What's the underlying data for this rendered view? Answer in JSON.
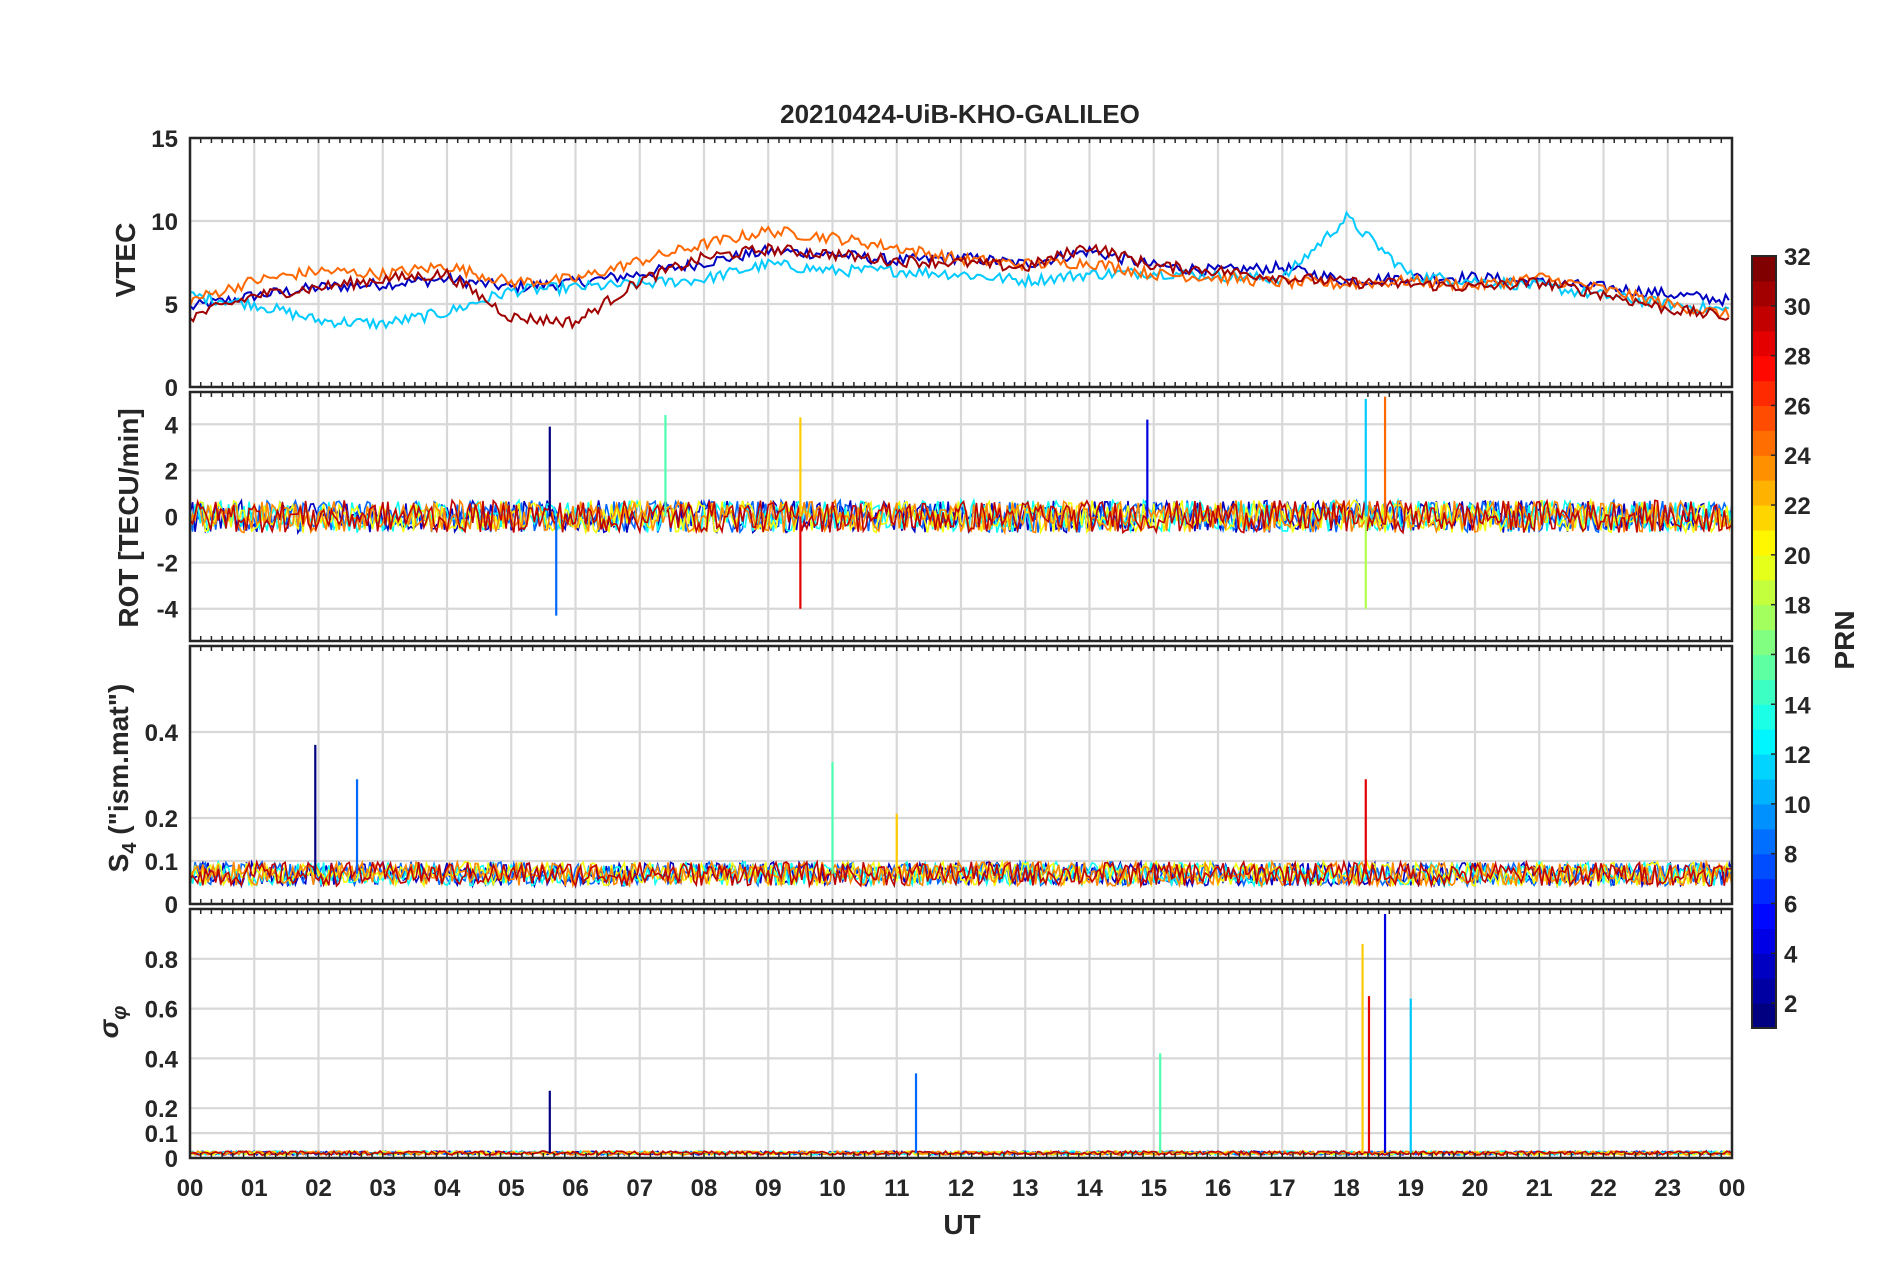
{
  "title": "20210424-UiB-KHO-GALILEO",
  "xlabel": "UT",
  "x_tick_labels": [
    "00",
    "01",
    "02",
    "03",
    "04",
    "05",
    "06",
    "07",
    "08",
    "09",
    "10",
    "11",
    "12",
    "13",
    "14",
    "15",
    "16",
    "17",
    "18",
    "19",
    "20",
    "21",
    "22",
    "23",
    "00"
  ],
  "colorbar": {
    "label": "PRN",
    "range": [
      1,
      32
    ],
    "tick_labels": [
      "2",
      "4",
      "6",
      "8",
      "10",
      "12",
      "14",
      "16",
      "18",
      "20",
      "22",
      "24",
      "26",
      "28",
      "30",
      "32"
    ],
    "colormap": "jet"
  },
  "panels": [
    {
      "id": "vtec",
      "ylabel": "VTEC",
      "ylim": [
        0,
        15
      ],
      "y_ticks": [
        "0",
        "5",
        "10",
        "15"
      ]
    },
    {
      "id": "rot",
      "ylabel": "ROT [TECU/min]",
      "ylim": [
        -5.4,
        5.4
      ],
      "y_ticks": [
        "-4",
        "-2",
        "0",
        "2",
        "4"
      ]
    },
    {
      "id": "s4",
      "ylabel_main": "S",
      "ylabel_sub": "4",
      "ylabel_rest": " (\"ism.mat\")",
      "ylim": [
        0,
        0.6
      ],
      "y_ticks": [
        "0",
        "0.1",
        "0.2",
        "0.4"
      ]
    },
    {
      "id": "sigma",
      "ylabel_main": "σ",
      "ylabel_sub": "φ",
      "ylim": [
        0,
        1
      ],
      "y_ticks": [
        "0",
        "0.1",
        "0.2",
        "0.4",
        "0.6",
        "0.8"
      ]
    }
  ],
  "chart_data": {
    "type": "line",
    "x_unit": "UT hours",
    "xlim": [
      0,
      24
    ],
    "note_series": "multiple GALILEO PRN traces, colored by PRN",
    "vtec": [
      {
        "prn": 3,
        "x": [
          0,
          1,
          2,
          3,
          4,
          5,
          6,
          7,
          8,
          9,
          10,
          11,
          12,
          13,
          14,
          15,
          16,
          17,
          18,
          19,
          20,
          21,
          22,
          23,
          24
        ],
        "y": [
          4.8,
          5.5,
          6.0,
          6.2,
          6.5,
          6.0,
          6.3,
          6.8,
          7.5,
          8.2,
          8.0,
          7.6,
          7.8,
          7.4,
          8.2,
          7.3,
          7.0,
          7.2,
          6.4,
          6.6,
          6.6,
          6.3,
          6.0,
          5.6,
          5.2
        ]
      },
      {
        "prn": 11,
        "x": [
          0,
          1,
          2,
          3,
          4,
          5,
          6,
          7,
          8,
          9,
          10,
          11,
          12,
          13,
          14,
          15,
          16,
          17,
          18,
          19,
          20,
          21,
          22,
          23,
          24
        ],
        "y": [
          5.5,
          5.0,
          4.0,
          3.8,
          4.5,
          5.8,
          6.0,
          6.2,
          6.5,
          7.4,
          7.0,
          7.0,
          6.8,
          6.4,
          6.8,
          6.9,
          6.7,
          6.5,
          10.2,
          6.7,
          6.4,
          6.1,
          5.5,
          5.0,
          4.6
        ]
      },
      {
        "prn": 25,
        "x": [
          0,
          1,
          2,
          3,
          4,
          5,
          6,
          7,
          8,
          9,
          10,
          11,
          12,
          13,
          14,
          15,
          16,
          17,
          18,
          19,
          20,
          21,
          22,
          23,
          24
        ],
        "y": [
          5.2,
          6.4,
          7.0,
          6.8,
          7.3,
          6.3,
          6.5,
          7.6,
          8.6,
          9.4,
          9.0,
          8.4,
          7.7,
          7.4,
          7.5,
          6.8,
          6.6,
          6.3,
          6.2,
          6.4,
          6.1,
          6.6,
          5.9,
          5.0,
          4.3
        ]
      },
      {
        "prn": 31,
        "x": [
          0,
          1,
          2,
          3,
          4,
          5,
          6,
          7,
          8,
          9,
          10,
          11,
          12,
          13,
          14,
          15,
          16,
          17,
          18,
          19,
          20,
          21,
          22,
          23,
          24
        ],
        "y": [
          4.2,
          5.5,
          6.0,
          6.5,
          6.8,
          4.2,
          3.9,
          6.4,
          7.8,
          8.3,
          8.0,
          7.6,
          7.5,
          7.2,
          8.5,
          7.3,
          7.0,
          6.6,
          6.3,
          6.2,
          6.0,
          6.3,
          5.6,
          4.7,
          4.2
        ]
      }
    ],
    "rot": [
      {
        "prn": "all",
        "x": [
          0,
          24
        ],
        "y": [
          0,
          0
        ],
        "peaks": [
          {
            "x": 5.6,
            "y": 3.9
          },
          {
            "x": 5.7,
            "y": -4.3
          },
          {
            "x": 7.4,
            "y": 4.4
          },
          {
            "x": 9.5,
            "y": 4.3
          },
          {
            "x": 9.5,
            "y": -4.0
          },
          {
            "x": 14.9,
            "y": 4.2
          },
          {
            "x": 18.3,
            "y": 5.1
          },
          {
            "x": 18.3,
            "y": -4.0
          },
          {
            "x": 18.6,
            "y": 5.2
          }
        ]
      }
    ],
    "s4": [
      {
        "prn": "all",
        "baseline": 0.07,
        "peaks": [
          {
            "x": 1.95,
            "y": 0.37
          },
          {
            "x": 2.6,
            "y": 0.29
          },
          {
            "x": 10.0,
            "y": 0.33
          },
          {
            "x": 11.0,
            "y": 0.21
          },
          {
            "x": 18.3,
            "y": 0.29
          }
        ]
      }
    ],
    "sigma_phi": [
      {
        "prn": "all",
        "baseline": 0.02,
        "peaks": [
          {
            "x": 5.6,
            "y": 0.27
          },
          {
            "x": 11.3,
            "y": 0.34
          },
          {
            "x": 15.1,
            "y": 0.42
          },
          {
            "x": 18.25,
            "y": 0.86
          },
          {
            "x": 18.35,
            "y": 0.65
          },
          {
            "x": 18.6,
            "y": 0.98
          },
          {
            "x": 19.0,
            "y": 0.64
          }
        ]
      }
    ]
  }
}
